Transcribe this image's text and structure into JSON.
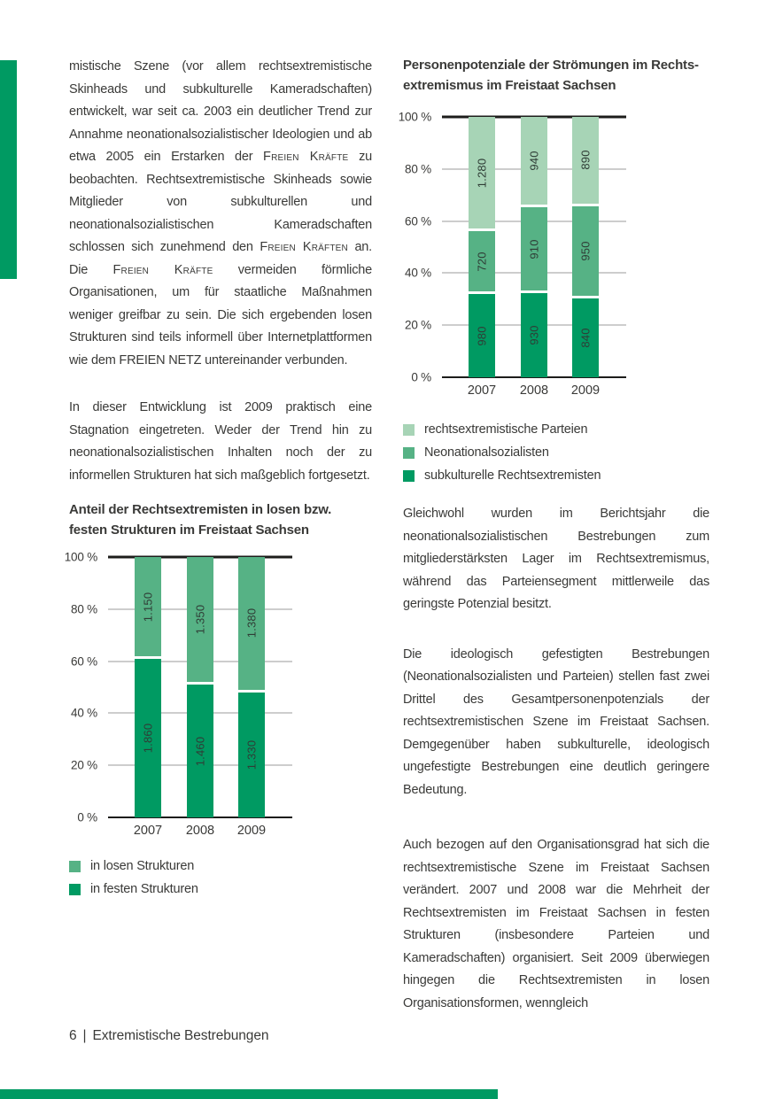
{
  "colors": {
    "green_dark": "#009A62",
    "green_medium": "#56B285",
    "green_light": "#A7D4B6",
    "text": "#3A3A38",
    "grid": "#9B9B9B",
    "axis": "#1D1D1B"
  },
  "left_column": {
    "paragraphs": [
      "mistische Szene (vor allem rechtsextremistische Skinheads und subkulturelle Kameradschaften) entwickelt, war seit ca. 2003 ein deutlicher Trend zur Annahme neonationalsozialistischer Ideologien und ab etwa 2005 ein Erstarken der ⟦Freien Kräfte⟧ zu beobachten. Rechtsextremistische Skinheads sowie Mitglieder von subkulturellen und neonationalsozialistischen Kameradschaften schlossen sich zunehmend den ⟦Freien Kräften⟧ an. Die ⟦Freien Kräfte⟧ vermeiden förmliche Organisationen, um für staatliche Maßnahmen weniger greifbar zu sein. Die sich ergebenden losen Strukturen sind teils informell über Internetplattformen wie dem FREIEN NETZ untereinander verbunden.",
      "In dieser Entwicklung ist 2009 praktisch eine Stagnation eingetreten. Weder der Trend hin zu neonationalsozialistischen Inhalten noch der zu informellen Strukturen hat sich maßgeblich fortgesetzt."
    ]
  },
  "right_column": {
    "paragraphs": [
      "Gleichwohl wurden im Berichtsjahr die neonationalsozialistischen Bestrebungen zum mitgliederstärksten Lager im Rechtsextremismus, während das Parteiensegment mittlerweile das geringste Potenzial besitzt.",
      "Die ideologisch gefestigten Bestrebungen (Neonationalsozialisten und Parteien) stellen fast zwei Drittel des Gesamtpersonenpotenzials der rechtsextremistischen Szene im Freistaat Sachsen. Demgegenüber haben subkulturelle, ideologisch ungefestigte Bestrebungen eine deutlich geringere Bedeutung.",
      "Auch bezogen auf den Organisationsgrad hat sich die rechtsextremistische Szene im Freistaat Sachsen verändert. 2007 und 2008 war die Mehrheit der Rechtsextremisten im Freistaat Sachsen in festen Strukturen (insbesondere Parteien und Kameradschaften) organisiert. Seit 2009 überwiegen hingegen die Rechtsextremisten in losen Organisationsformen, wenngleich"
    ]
  },
  "chart_data": [
    {
      "id": "potentials",
      "type": "bar",
      "stacked": true,
      "percent_stacked": true,
      "title": "Personenpotenziale der Strömungen im Rechts-\nextremismus im Freistaat Sachsen",
      "categories": [
        "2007",
        "2008",
        "2009"
      ],
      "series": [
        {
          "name": "rechtsextremistische Parteien",
          "color_key": "green_light",
          "values": [
            1280,
            940,
            890
          ],
          "labels": [
            "1.280",
            "940",
            "890"
          ]
        },
        {
          "name": "Neonationalsozialisten",
          "color_key": "green_medium",
          "values": [
            720,
            910,
            950
          ],
          "labels": [
            "720",
            "910",
            "950"
          ]
        },
        {
          "name": "subkulturelle Rechtsextremisten",
          "color_key": "green_dark",
          "values": [
            980,
            930,
            840
          ],
          "labels": [
            "980",
            "930",
            "840"
          ]
        }
      ],
      "y_ticks": [
        "100 %",
        "80 %",
        "60 %",
        "40 %",
        "20 %",
        "0 %"
      ],
      "ylim": [
        0,
        100
      ],
      "xlabel": "",
      "ylabel": "",
      "grid": true,
      "legend_position": "below"
    },
    {
      "id": "structures",
      "type": "bar",
      "stacked": true,
      "percent_stacked": true,
      "title": "Anteil der Rechtsextremisten in losen bzw.\nfesten Strukturen im Freistaat Sachsen",
      "categories": [
        "2007",
        "2008",
        "2009"
      ],
      "series": [
        {
          "name": "in losen Strukturen",
          "color_key": "green_medium",
          "values": [
            1150,
            1350,
            1380
          ],
          "labels": [
            "1.150",
            "1.350",
            "1.380"
          ]
        },
        {
          "name": "in festen Strukturen",
          "color_key": "green_dark",
          "values": [
            1860,
            1460,
            1330
          ],
          "labels": [
            "1.860",
            "1.460",
            "1.330"
          ]
        }
      ],
      "y_ticks": [
        "100 %",
        "80 %",
        "60 %",
        "40 %",
        "20 %",
        "0 %"
      ],
      "ylim": [
        0,
        100
      ],
      "xlabel": "",
      "ylabel": "",
      "grid": true,
      "legend_position": "below"
    }
  ],
  "footer": {
    "page_number": "6",
    "divider": "|",
    "section_title": "Extremistische Bestrebungen"
  }
}
